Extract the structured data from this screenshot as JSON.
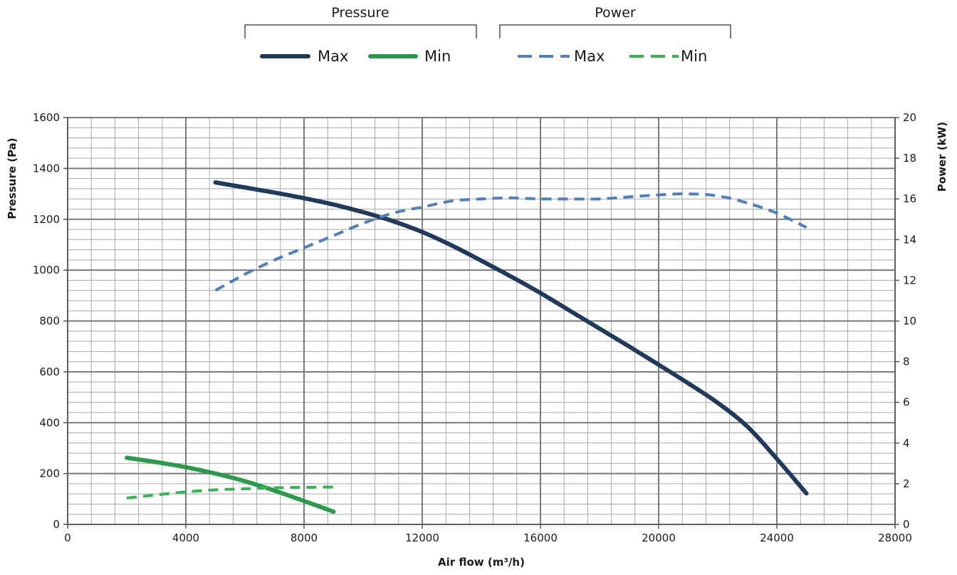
{
  "chart_data": {
    "type": "line",
    "title": "",
    "xlabel": "Air flow (m³/h)",
    "ylabel_left": "Pressure (Pa)",
    "ylabel_right": "Power (kW)",
    "xlim": [
      0,
      28000
    ],
    "ylim_left": [
      0,
      1600
    ],
    "ylim_right": [
      0,
      20
    ],
    "x_ticks": [
      0,
      4000,
      8000,
      12000,
      16000,
      20000,
      24000,
      28000
    ],
    "y_ticks_left": [
      0,
      200,
      400,
      600,
      800,
      1000,
      1200,
      1400,
      1600
    ],
    "y_ticks_right": [
      0,
      2,
      4,
      6,
      8,
      10,
      12,
      14,
      16,
      18,
      20
    ],
    "grid": true,
    "legend": {
      "placement": "top",
      "groups": [
        {
          "title": "Pressure",
          "entries": [
            "Max",
            "Min"
          ]
        },
        {
          "title": "Power",
          "entries": [
            "Max",
            "Min"
          ]
        }
      ]
    },
    "series": [
      {
        "group": "Pressure",
        "name": "Max",
        "axis": "left",
        "style": "solid",
        "color": "#1f3a5a",
        "x": [
          5000,
          6000,
          7000,
          8000,
          9000,
          10000,
          11000,
          12000,
          13000,
          14000,
          15000,
          16000,
          17000,
          18000,
          19000,
          20000,
          21000,
          22000,
          23000,
          24000,
          25000
        ],
        "y": [
          1345,
          1325,
          1305,
          1283,
          1258,
          1228,
          1193,
          1150,
          1097,
          1037,
          975,
          910,
          840,
          770,
          700,
          628,
          555,
          478,
          385,
          258,
          122
        ]
      },
      {
        "group": "Pressure",
        "name": "Min",
        "axis": "left",
        "style": "solid",
        "color": "#2b9a4a",
        "x": [
          2000,
          3000,
          4000,
          5000,
          6000,
          7000,
          8000,
          9000
        ],
        "y": [
          262,
          245,
          225,
          200,
          170,
          133,
          92,
          50
        ]
      },
      {
        "group": "Power",
        "name": "Max",
        "axis": "right",
        "style": "dashed",
        "color": "#4f7fbe",
        "x": [
          5000,
          6000,
          7000,
          8000,
          9000,
          10000,
          11000,
          12000,
          13000,
          14000,
          15000,
          16000,
          17000,
          18000,
          19000,
          20000,
          21000,
          22000,
          23000,
          24000,
          25000
        ],
        "y": [
          11.5,
          12.3,
          13.0,
          13.6,
          14.2,
          14.8,
          15.3,
          15.6,
          15.9,
          16.0,
          16.05,
          16.0,
          16.0,
          16.0,
          16.1,
          16.2,
          16.25,
          16.15,
          15.8,
          15.3,
          14.6
        ]
      },
      {
        "group": "Power",
        "name": "Min",
        "axis": "right",
        "style": "dashed",
        "color": "#33b552",
        "x": [
          2000,
          3000,
          4000,
          5000,
          6000,
          7000,
          8000,
          9000
        ],
        "y": [
          1.3,
          1.45,
          1.6,
          1.7,
          1.75,
          1.8,
          1.82,
          1.84
        ]
      }
    ]
  }
}
